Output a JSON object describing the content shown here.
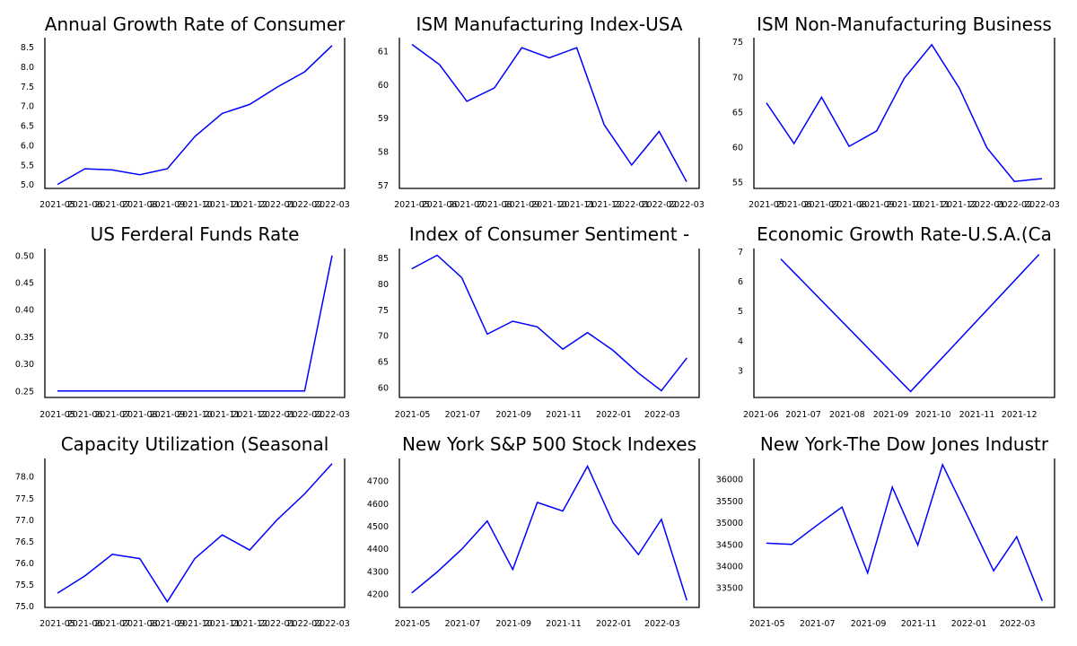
{
  "figure": {
    "layout": "3x3 grid of line charts",
    "line_color": "#0000ff",
    "axis_color": "#000000",
    "background": "#ffffff"
  },
  "chart_data": [
    {
      "type": "line",
      "title": "Annual Growth Rate of Consumer",
      "x_mode": "category",
      "categories": [
        "2021-05",
        "2021-06",
        "2021-07",
        "2021-08",
        "2021-09",
        "2021-10",
        "2021-11",
        "2021-12",
        "2022-01",
        "2022-02",
        "2022-03"
      ],
      "x_tick_labels": [
        "2021-05",
        "2021-06",
        "2021-07",
        "2021-08",
        "2021-09",
        "2021-10",
        "2021-11",
        "2021-12",
        "2022-01",
        "2022-02",
        "2022-03"
      ],
      "values": [
        5.0,
        5.4,
        5.37,
        5.25,
        5.4,
        6.22,
        6.81,
        7.04,
        7.48,
        7.87,
        8.54
      ],
      "yticks": [
        5.0,
        5.5,
        6.0,
        6.5,
        7.0,
        7.5,
        8.0,
        8.5
      ],
      "ytick_labels": [
        "5.0",
        "5.5",
        "6.0",
        "6.5",
        "7.0",
        "7.5",
        "8.0",
        "8.5"
      ],
      "ylim": [
        4.9,
        8.74
      ],
      "xlabel": "",
      "ylabel": "",
      "grid": false,
      "legend": "none"
    },
    {
      "type": "line",
      "title": "ISM Manufacturing Index-USA",
      "x_mode": "category",
      "categories": [
        "2021-05",
        "2021-06",
        "2021-07",
        "2021-08",
        "2021-09",
        "2021-10",
        "2021-11",
        "2021-12",
        "2022-01",
        "2022-02",
        "2022-03"
      ],
      "x_tick_labels": [
        "2021-05",
        "2021-06",
        "2021-07",
        "2021-08",
        "2021-09",
        "2021-10",
        "2021-11",
        "2021-12",
        "2022-01",
        "2022-02",
        "2022-03"
      ],
      "values": [
        61.2,
        60.6,
        59.5,
        59.9,
        61.1,
        60.8,
        61.1,
        58.8,
        57.6,
        58.6,
        57.1
      ],
      "yticks": [
        57,
        58,
        59,
        60,
        61
      ],
      "ytick_labels": [
        "57",
        "58",
        "59",
        "60",
        "61"
      ],
      "ylim": [
        56.9,
        61.4
      ],
      "xlabel": "",
      "ylabel": "",
      "grid": false,
      "legend": "none"
    },
    {
      "type": "line",
      "title": "ISM Non-Manufacturing Business",
      "x_mode": "category",
      "categories": [
        "2021-05",
        "2021-06",
        "2021-07",
        "2021-08",
        "2021-09",
        "2021-10",
        "2021-11",
        "2021-12",
        "2022-01",
        "2022-02",
        "2022-03"
      ],
      "x_tick_labels": [
        "2021-05",
        "2021-06",
        "2021-07",
        "2021-08",
        "2021-09",
        "2021-10",
        "2021-11",
        "2021-12",
        "2022-01",
        "2022-02",
        "2022-03"
      ],
      "values": [
        66.3,
        60.5,
        67.1,
        60.1,
        62.3,
        69.8,
        74.6,
        68.4,
        59.9,
        55.1,
        55.5
      ],
      "yticks": [
        55,
        60,
        65,
        70,
        75
      ],
      "ytick_labels": [
        "55",
        "60",
        "65",
        "70",
        "75"
      ],
      "ylim": [
        54.1,
        75.6
      ],
      "xlabel": "",
      "ylabel": "",
      "grid": false,
      "legend": "none"
    },
    {
      "type": "line",
      "title": "US Ferderal Funds Rate",
      "x_mode": "category",
      "categories": [
        "2021-05",
        "2021-06",
        "2021-07",
        "2021-08",
        "2021-09",
        "2021-10",
        "2021-11",
        "2021-12",
        "2022-01",
        "2022-02",
        "2022-03"
      ],
      "x_tick_labels": [
        "2021-05",
        "2021-06",
        "2021-07",
        "2021-08",
        "2021-09",
        "2021-10",
        "2021-11",
        "2021-12",
        "2022-01",
        "2022-02",
        "2022-03"
      ],
      "values": [
        0.25,
        0.25,
        0.25,
        0.25,
        0.25,
        0.25,
        0.25,
        0.25,
        0.25,
        0.25,
        0.5
      ],
      "yticks": [
        0.25,
        0.3,
        0.35,
        0.4,
        0.45,
        0.5
      ],
      "ytick_labels": [
        "0.25",
        "0.30",
        "0.35",
        "0.40",
        "0.45",
        "0.50"
      ],
      "ylim": [
        0.238,
        0.513
      ],
      "xlabel": "",
      "ylabel": "",
      "grid": false,
      "legend": "none"
    },
    {
      "type": "line",
      "title": "Index of Consumer Sentiment -",
      "x_mode": "date",
      "x": [
        "2021-04-30",
        "2021-05-31",
        "2021-06-30",
        "2021-07-31",
        "2021-08-31",
        "2021-09-30",
        "2021-10-31",
        "2021-11-30",
        "2021-12-31",
        "2022-01-31",
        "2022-02-28",
        "2022-03-31"
      ],
      "values": [
        82.9,
        85.5,
        81.2,
        70.3,
        72.8,
        71.7,
        67.4,
        70.6,
        67.2,
        62.8,
        59.4,
        65.7
      ],
      "x_tick_dates": [
        "2021-05-01",
        "2021-07-01",
        "2021-09-01",
        "2021-11-01",
        "2022-01-01",
        "2022-03-01"
      ],
      "x_tick_labels": [
        "2021-05",
        "2021-07",
        "2021-09",
        "2021-11",
        "2022-01",
        "2022-03"
      ],
      "xlim": [
        "2021-04-15",
        "2022-04-15"
      ],
      "yticks": [
        60,
        65,
        70,
        75,
        80,
        85
      ],
      "ytick_labels": [
        "60",
        "65",
        "70",
        "75",
        "80",
        "85"
      ],
      "ylim": [
        58.1,
        86.8
      ],
      "xlabel": "",
      "ylabel": "",
      "grid": false,
      "legend": "none"
    },
    {
      "type": "line",
      "title": "Economic Growth Rate-U.S.A.(Ca",
      "x_mode": "date",
      "x": [
        "2021-06-15",
        "2021-09-15",
        "2021-12-15"
      ],
      "values": [
        6.75,
        2.3,
        6.9
      ],
      "x_tick_dates": [
        "2021-06-01",
        "2021-07-01",
        "2021-08-01",
        "2021-09-01",
        "2021-10-01",
        "2021-11-01",
        "2021-12-01"
      ],
      "x_tick_labels": [
        "2021-06",
        "2021-07",
        "2021-08",
        "2021-09",
        "2021-10",
        "2021-11",
        "2021-12"
      ],
      "xlim": [
        "2021-05-27",
        "2021-12-26"
      ],
      "yticks": [
        3,
        4,
        5,
        6,
        7
      ],
      "ytick_labels": [
        "3",
        "4",
        "5",
        "6",
        "7"
      ],
      "ylim": [
        2.1,
        7.1
      ],
      "xlabel": "",
      "ylabel": "",
      "grid": false,
      "legend": "none"
    },
    {
      "type": "line",
      "title": "Capacity Utilization (Seasonal",
      "x_mode": "category",
      "categories": [
        "2021-05",
        "2021-06",
        "2021-07",
        "2021-08",
        "2021-09",
        "2021-10",
        "2021-11",
        "2021-12",
        "2022-01",
        "2022-02",
        "2022-03"
      ],
      "x_tick_labels": [
        "2021-05",
        "2021-06",
        "2021-07",
        "2021-08",
        "2021-09",
        "2021-10",
        "2021-11",
        "2021-12",
        "2022-01",
        "2022-02",
        "2022-03"
      ],
      "values": [
        75.3,
        75.7,
        76.2,
        76.1,
        75.1,
        76.1,
        76.65,
        76.3,
        77.0,
        77.6,
        78.3
      ],
      "yticks": [
        75.0,
        75.5,
        76.0,
        76.5,
        77.0,
        77.5,
        78.0
      ],
      "ytick_labels": [
        "75.0",
        "75.5",
        "76.0",
        "76.5",
        "77.0",
        "77.5",
        "78.0"
      ],
      "ylim": [
        74.97,
        78.42
      ],
      "xlabel": "",
      "ylabel": "",
      "grid": false,
      "legend": "none"
    },
    {
      "type": "line",
      "title": "New York S&P 500 Stock Indexes",
      "x_mode": "date",
      "x": [
        "2021-04-30",
        "2021-05-31",
        "2021-06-30",
        "2021-07-31",
        "2021-08-31",
        "2021-09-30",
        "2021-10-31",
        "2021-11-30",
        "2021-12-31",
        "2022-01-31",
        "2022-02-28",
        "2022-03-31"
      ],
      "values": [
        4204,
        4297,
        4398,
        4523,
        4308,
        4605,
        4567,
        4766,
        4516,
        4374,
        4530,
        4171
      ],
      "x_tick_dates": [
        "2021-05-01",
        "2021-07-01",
        "2021-09-01",
        "2021-11-01",
        "2022-01-01",
        "2022-03-01"
      ],
      "x_tick_labels": [
        "2021-05",
        "2021-07",
        "2021-09",
        "2021-11",
        "2022-01",
        "2022-03"
      ],
      "xlim": [
        "2021-04-15",
        "2022-04-15"
      ],
      "yticks": [
        4200,
        4300,
        4400,
        4500,
        4600,
        4700
      ],
      "ytick_labels": [
        "4200",
        "4300",
        "4400",
        "4500",
        "4600",
        "4700"
      ],
      "ylim": [
        4140,
        4800
      ],
      "xlabel": "",
      "ylabel": "",
      "grid": false,
      "legend": "none"
    },
    {
      "type": "line",
      "title": "New York-The Dow Jones Industr",
      "x_mode": "date",
      "x": [
        "2021-04-30",
        "2021-05-31",
        "2021-06-30",
        "2021-07-31",
        "2021-08-31",
        "2021-09-30",
        "2021-10-31",
        "2021-11-30",
        "2021-12-31",
        "2022-01-31",
        "2022-02-28",
        "2022-03-31"
      ],
      "values": [
        34529,
        34502,
        34934,
        35361,
        33843,
        35820,
        34484,
        36338,
        35131,
        33893,
        34678,
        33200
      ],
      "x_tick_dates": [
        "2021-05-01",
        "2021-07-01",
        "2021-09-01",
        "2021-11-01",
        "2022-01-01",
        "2022-03-01"
      ],
      "x_tick_labels": [
        "2021-05",
        "2021-07",
        "2021-09",
        "2021-11",
        "2022-01",
        "2022-03"
      ],
      "xlim": [
        "2021-04-15",
        "2022-04-15"
      ],
      "yticks": [
        33500,
        34000,
        34500,
        35000,
        35500,
        36000
      ],
      "ytick_labels": [
        "33500",
        "34000",
        "34500",
        "35000",
        "35500",
        "36000"
      ],
      "ylim": [
        33050,
        36480
      ],
      "xlabel": "",
      "ylabel": "",
      "grid": false,
      "legend": "none"
    }
  ]
}
